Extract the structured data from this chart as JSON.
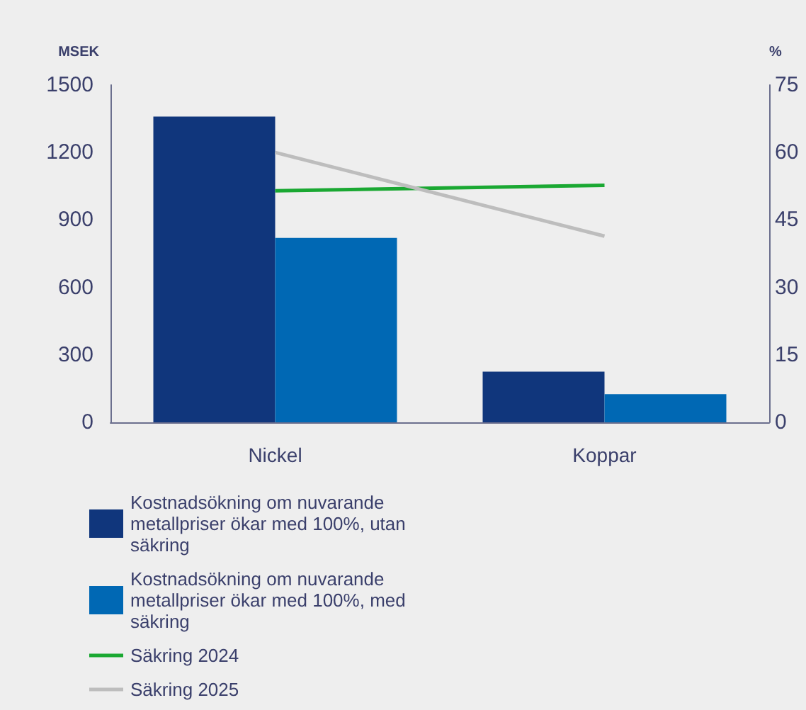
{
  "chart_data": {
    "type": "bar",
    "ylabel": "MSEK",
    "y2label": "%",
    "categories": [
      "Nickel",
      "Koppar"
    ],
    "series": [
      {
        "name": "Kostnadsökning om nuvarande metallpriser ökar med 100%, utan säkring",
        "color": "#10367c",
        "values": [
          1360,
          225
        ]
      },
      {
        "name": "Kostnadsökning om nuvarande metallpriser ökar med 100%, med säkring",
        "color": "#0068b4",
        "values": [
          820,
          125
        ]
      },
      {
        "name": "Säkring 2024",
        "type": "line",
        "axis": "y2",
        "color": "#1aa832",
        "values": [
          51.5,
          52.7
        ]
      },
      {
        "name": "Säkring 2025",
        "type": "line",
        "axis": "y2",
        "color": "#bdbdbd",
        "values": [
          60,
          41.4
        ]
      }
    ],
    "ylim": [
      0,
      1500
    ],
    "yticks": [
      0,
      300,
      600,
      900,
      1200,
      1500
    ],
    "y2lim": [
      0,
      75
    ],
    "y2ticks": [
      0,
      15,
      30,
      45,
      60,
      75
    ],
    "grid": false,
    "legend": "bottom",
    "marker": "none"
  }
}
